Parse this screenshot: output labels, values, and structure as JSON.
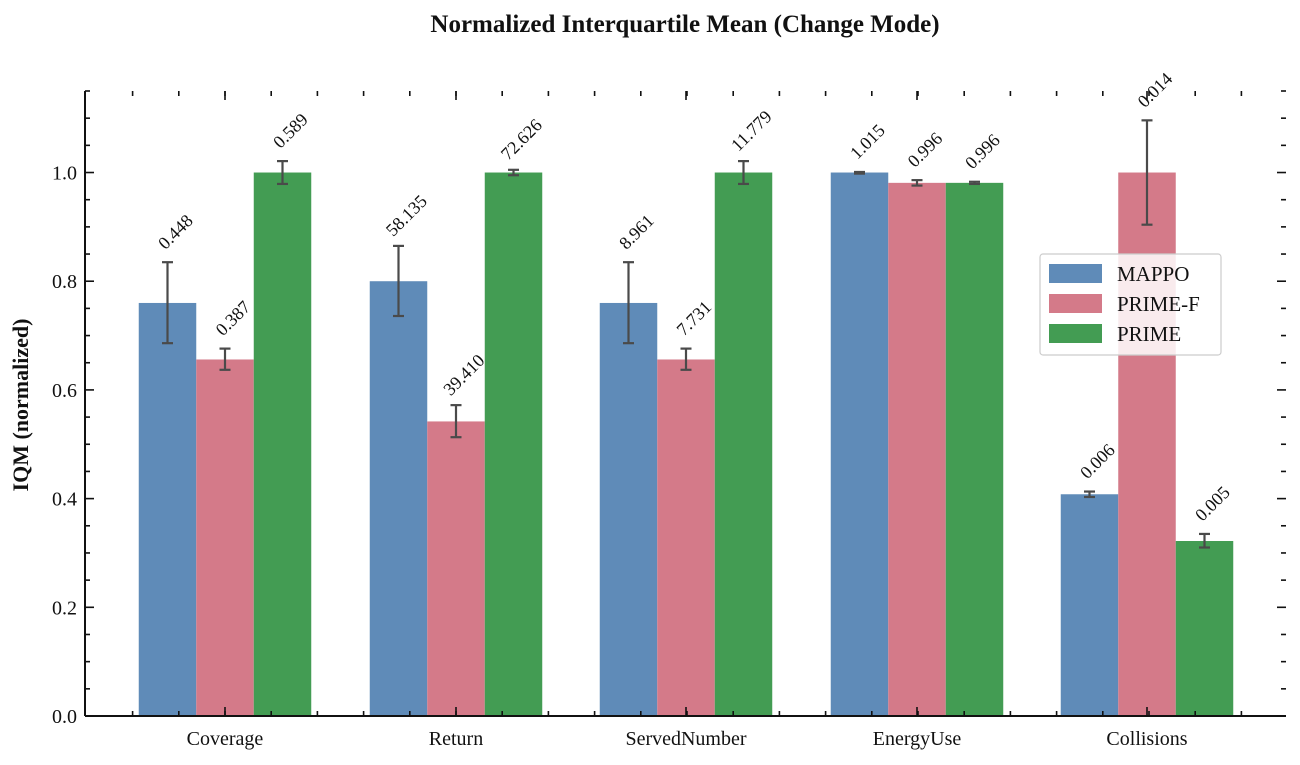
{
  "chart_data": {
    "type": "bar",
    "title": "Normalized Interquartile Mean (Change Mode)",
    "xlabel": "",
    "ylabel": "IQM (normalized)",
    "ylim": [
      0,
      1.15
    ],
    "yticks": [
      0.0,
      0.2,
      0.4,
      0.6,
      0.8,
      1.0
    ],
    "ytick_labels": [
      "0.0",
      "0.2",
      "0.4",
      "0.6",
      "0.8",
      "1.0"
    ],
    "grid": false,
    "legend_position": "center-right",
    "categories": [
      "Coverage",
      "Return",
      "ServedNumber",
      "EnergyUse",
      "Collisions"
    ],
    "series": [
      {
        "name": "MAPPO",
        "color": "#5f8bb8",
        "values": [
          0.76,
          0.8,
          0.76,
          1.0,
          0.408
        ],
        "error_low": [
          0.686,
          0.736,
          0.686,
          0.998,
          0.403
        ],
        "error_high": [
          0.835,
          0.865,
          0.835,
          1.001,
          0.413
        ],
        "labels": [
          "0.448",
          "58.135",
          "8.961",
          "1.015",
          "0.006"
        ]
      },
      {
        "name": "PRIME-F",
        "color": "#d47a89",
        "values": [
          0.656,
          0.542,
          0.656,
          0.981,
          1.0
        ],
        "error_low": [
          0.637,
          0.513,
          0.637,
          0.976,
          0.904
        ],
        "error_high": [
          0.676,
          0.572,
          0.676,
          0.986,
          1.096
        ],
        "labels": [
          "0.387",
          "39.410",
          "7.731",
          "0.996",
          "0.014"
        ]
      },
      {
        "name": "PRIME",
        "color": "#439c53",
        "values": [
          1.0,
          1.0,
          1.0,
          0.981,
          0.322
        ],
        "error_low": [
          0.979,
          0.995,
          0.979,
          0.979,
          0.31
        ],
        "error_high": [
          1.021,
          1.005,
          1.021,
          0.983,
          0.335
        ],
        "labels": [
          "0.589",
          "72.626",
          "11.779",
          "0.996",
          "0.005"
        ]
      }
    ]
  }
}
